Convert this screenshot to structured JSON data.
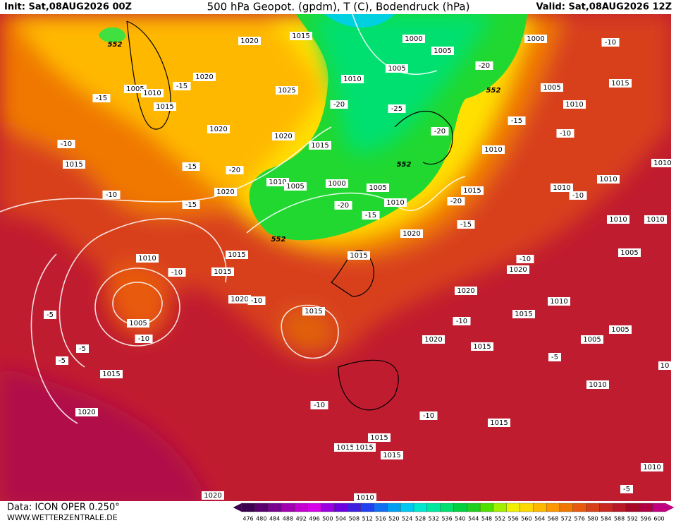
{
  "header": {
    "init": "Init: Sat,08AUG2026 00Z",
    "title": "500 hPa Geopot. (gpdm), T (C), Bodendruck (hPa)",
    "valid": "Valid: Sat,08AUG2026 12Z"
  },
  "footer": {
    "data": "Data: ICON OPER 0.250°",
    "site": "WWW.WETTERZENTRALE.DE"
  },
  "colorbar": {
    "ticks": [
      476,
      480,
      484,
      488,
      492,
      496,
      500,
      504,
      508,
      512,
      516,
      520,
      524,
      528,
      532,
      536,
      540,
      544,
      548,
      552,
      556,
      560,
      564,
      568,
      572,
      576,
      580,
      584,
      588,
      592,
      596,
      600
    ],
    "colors": [
      "#3d0050",
      "#5a006e",
      "#7a0090",
      "#a000b0",
      "#c400d0",
      "#d800e8",
      "#9a00e0",
      "#6e00e0",
      "#4020e0",
      "#2040f0",
      "#1070f0",
      "#00a0f0",
      "#00c8f0",
      "#00e8d0",
      "#00e8a0",
      "#00e070",
      "#00d040",
      "#20d020",
      "#50e000",
      "#a0f000",
      "#f0f000",
      "#ffd800",
      "#ffb800",
      "#ff9800",
      "#f07800",
      "#e85a10",
      "#d84018",
      "#c82820",
      "#b81828",
      "#a80828",
      "#b00040",
      "#c00080"
    ]
  },
  "map": {
    "labels": [
      "552",
      "1020",
      "1015",
      "1000",
      "1005",
      "1000",
      "-10",
      "1005",
      "-20",
      "1010",
      "1005",
      "1010",
      "-15",
      "1020",
      "1025",
      "552",
      "1005",
      "1015",
      "-15",
      "1015",
      "-20",
      "-25",
      "1010",
      "-15",
      "1020",
      "1020",
      "-20",
      "-10",
      "-10",
      "1015",
      "1010",
      "1015",
      "-15",
      "-20",
      "552",
      "1010",
      "1010",
      "1005",
      "1000",
      "1005",
      "1010",
      "1010",
      "-10",
      "1020",
      "1015",
      "-10",
      "-15",
      "-20",
      "1010",
      "-20",
      "-15",
      "1010",
      "1010",
      "-15",
      "552",
      "1020",
      "1015",
      "1015",
      "1010",
      "1005",
      "-10",
      "-10",
      "1015",
      "1020",
      "1020",
      "1020",
      "-10",
      "1010",
      "1015",
      "1015",
      "-5",
      "1005",
      "-10",
      "1005",
      "-10",
      "1020",
      "1015",
      "1005",
      "-5",
      "-5",
      "-5",
      "1015",
      "10",
      "1010",
      "-10",
      "1020",
      "-10",
      "1015",
      "1015",
      "1015",
      "1015",
      "1015",
      "1010",
      "-5",
      "1020",
      "1010"
    ]
  }
}
